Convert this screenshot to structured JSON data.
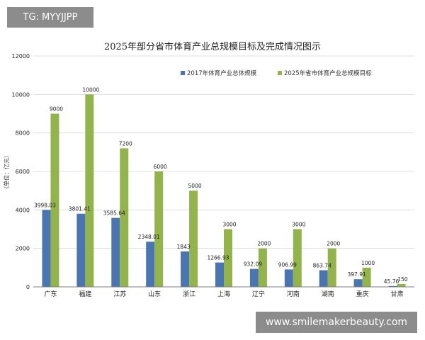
{
  "overlay": {
    "tag_text": "TG: MYYJJPP",
    "watermark_text": "www.smilemakerbeauty.com"
  },
  "colors": {
    "series1": "#4a75b0",
    "series2": "#93b44d",
    "grid": "#d9d9d9",
    "axis": "#7f7f7f"
  },
  "chart_data": {
    "type": "bar",
    "title": "2025年部分省市体育产业总规模目标及完成情况图示",
    "ylabel": "（单位：亿元）",
    "xlabel": "",
    "ylim": [
      0,
      12000
    ],
    "yticks": [
      0,
      2000,
      4000,
      6000,
      8000,
      10000,
      12000
    ],
    "grid": true,
    "legend_position": "top-right",
    "categories": [
      "广东",
      "福建",
      "江苏",
      "山东",
      "浙江",
      "上海",
      "辽宁",
      "河南",
      "湖南",
      "重庆",
      "甘肃"
    ],
    "series": [
      {
        "name": "2017年体育产业总体规模",
        "values": [
          3998.03,
          3801.41,
          3585.64,
          2348.01,
          1843,
          1266.93,
          932.09,
          906.99,
          863.74,
          397.91,
          45.76
        ],
        "labels": [
          "3998.03",
          "3801.41",
          "3585.64",
          "2348.01",
          "1843",
          "1266.93",
          "932.09",
          "906.99",
          "863.74",
          "397.91",
          "45.76"
        ]
      },
      {
        "name": "2025年省市体育产业总规模目标",
        "values": [
          9000,
          10000,
          7200,
          6000,
          5000,
          3000,
          2000,
          3000,
          2000,
          1000,
          150
        ],
        "labels": [
          "9000",
          "10000",
          "7200",
          "6000",
          "5000",
          "3000",
          "2000",
          "3000",
          "2000",
          "1000",
          "150"
        ]
      }
    ]
  }
}
